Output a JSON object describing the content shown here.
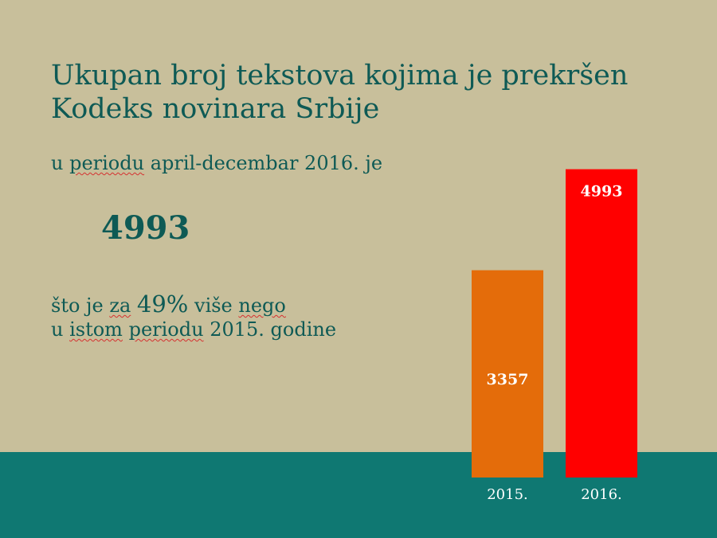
{
  "slide": {
    "title": "Ukupan broj tekstova kojima je prekršen Kodeks novinara Srbije",
    "period_text": {
      "before": "u ",
      "underlined": "periodu",
      "after": " april-decembar 2016. je"
    },
    "big_number": "4993",
    "comparison": {
      "line1": {
        "p1": "što je ",
        "p2": "za",
        "p3": " ",
        "p4": "49%",
        "p5": " više ",
        "p6": "nego"
      },
      "line2": {
        "p1": "u ",
        "p2": "istom",
        "p3": " ",
        "p4": "periodu",
        "p5": " 2015. godine"
      }
    },
    "colors": {
      "background": "#c8bf9b",
      "band": "#0f7872",
      "text": "#0e5a55"
    }
  },
  "chart_data": {
    "type": "bar",
    "categories": [
      "2015.",
      "2016."
    ],
    "values": [
      3357,
      4993
    ],
    "data_labels": [
      "3357",
      "4993"
    ],
    "colors": [
      "#e46c0a",
      "#ff0000"
    ],
    "title": "",
    "xlabel": "",
    "ylabel": "",
    "ylim": [
      0,
      5800
    ],
    "grid": false,
    "legend": "none"
  }
}
